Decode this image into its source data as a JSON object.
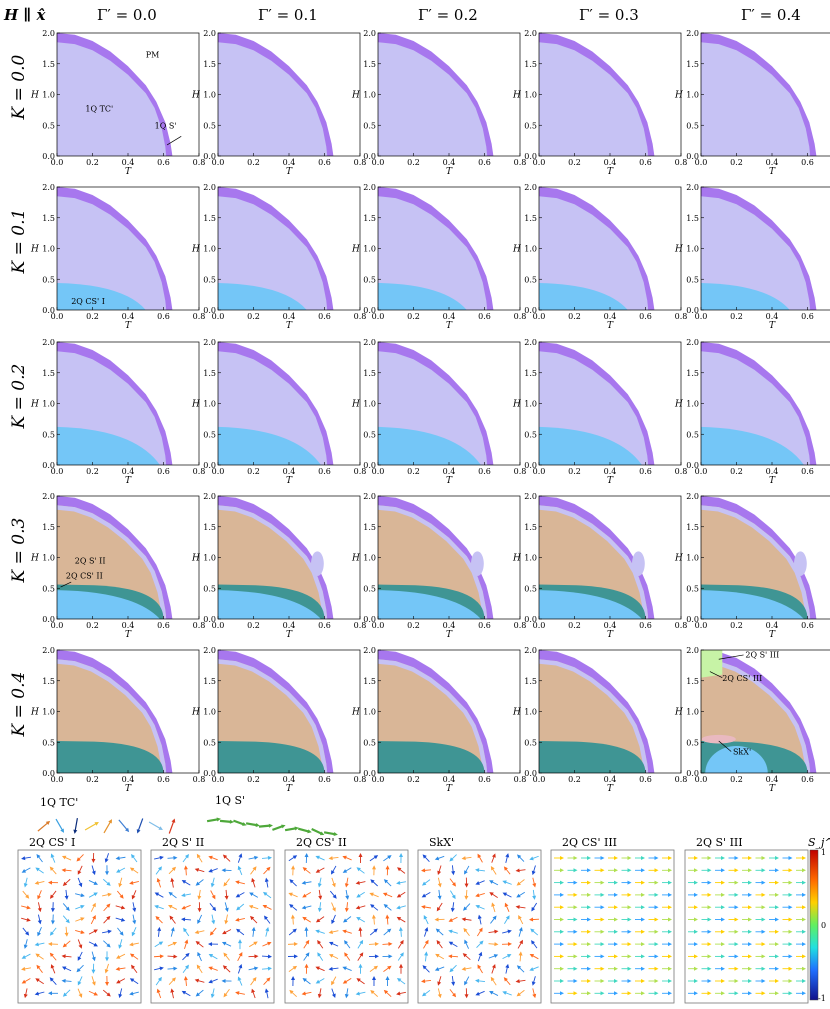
{
  "figure": {
    "corner_label": "H ∥ x̂",
    "column_titles": [
      "Γ′ = 0.0",
      "Γ′ = 0.1",
      "Γ′ = 0.2",
      "Γ′ = 0.3",
      "Γ′ = 0.4"
    ],
    "row_titles": [
      "K = 0.0",
      "K = 0.1",
      "K = 0.2",
      "K = 0.3",
      "K = 0.4"
    ],
    "x_axis_label": "T",
    "y_axis_label": "H",
    "x_ticks": [
      "0.0",
      "0.2",
      "0.4",
      "0.6",
      "0.8"
    ],
    "y_ticks": [
      "0.0",
      "0.5",
      "1.0",
      "1.5",
      "2.0"
    ],
    "annotations": {
      "pm": "PM",
      "tc": "1Q TC'",
      "s1q": "1Q S'",
      "cs1": "2Q CS' I",
      "s2": "2Q S' II",
      "cs2": "2Q CS' II",
      "s3": "2Q S' III",
      "cs3": "2Q CS' III",
      "skx": "SkX'"
    }
  },
  "phase_colors": {
    "tc": "#c6c2f4",
    "s1q": "#a777ee",
    "cs1": "#74c6f7",
    "s2": "#d9b697",
    "cs2": "#3f9594",
    "skx": "#74c6f7",
    "s3": "#c7f3a6",
    "cs3": "#c7f3a6"
  },
  "spin_structures_1q": {
    "tc_label": "1Q TC'",
    "s_label": "1Q S'"
  },
  "spin_structures_2q": {
    "labels": [
      "2Q CS' I",
      "2Q S' II",
      "2Q CS' II",
      "SkX'",
      "2Q CS' III",
      "2Q S' III"
    ]
  },
  "colorbar": {
    "title": "S_j^z",
    "ticks": [
      "1",
      "0",
      "-1"
    ]
  },
  "chart_data": {
    "type": "heatmap",
    "xlabel": "T",
    "ylabel": "H",
    "xlim": [
      0,
      0.8
    ],
    "ylim": [
      0,
      2.0
    ],
    "tc_boundary": [
      [
        0.0,
        1.85
      ],
      [
        0.1,
        1.82
      ],
      [
        0.2,
        1.72
      ],
      [
        0.3,
        1.55
      ],
      [
        0.4,
        1.32
      ],
      [
        0.5,
        1.02
      ],
      [
        0.55,
        0.78
      ],
      [
        0.59,
        0.45
      ],
      [
        0.61,
        0.15
      ],
      [
        0.615,
        0.0
      ]
    ],
    "pm_boundary": [
      [
        0.0,
        2.0
      ],
      [
        0.1,
        1.97
      ],
      [
        0.2,
        1.87
      ],
      [
        0.3,
        1.7
      ],
      [
        0.4,
        1.46
      ],
      [
        0.5,
        1.15
      ],
      [
        0.56,
        0.88
      ],
      [
        0.61,
        0.55
      ],
      [
        0.64,
        0.2
      ],
      [
        0.65,
        0.0
      ]
    ],
    "panels": [
      [
        {
          "cs1": null,
          "cs2": null,
          "s2": false,
          "blob": false,
          "skx": false,
          "s3": false
        },
        {
          "cs1": null,
          "cs2": null,
          "s2": false,
          "blob": false,
          "skx": false,
          "s3": false
        },
        {
          "cs1": null,
          "cs2": null,
          "s2": false,
          "blob": false,
          "skx": false,
          "s3": false
        },
        {
          "cs1": null,
          "cs2": null,
          "s2": false,
          "blob": false,
          "skx": false,
          "s3": false
        },
        {
          "cs1": null,
          "cs2": null,
          "s2": false,
          "blob": false,
          "skx": false,
          "s3": false
        }
      ],
      [
        {
          "cs1": [
            0.5,
            0.44
          ],
          "cs2": null,
          "s2": false,
          "blob": false,
          "skx": false,
          "s3": false
        },
        {
          "cs1": [
            0.5,
            0.44
          ],
          "cs2": null,
          "s2": false,
          "blob": false,
          "skx": false,
          "s3": false
        },
        {
          "cs1": [
            0.5,
            0.44
          ],
          "cs2": null,
          "s2": false,
          "blob": false,
          "skx": false,
          "s3": false
        },
        {
          "cs1": [
            0.5,
            0.44
          ],
          "cs2": null,
          "s2": false,
          "blob": false,
          "skx": false,
          "s3": false
        },
        {
          "cs1": [
            0.5,
            0.44
          ],
          "cs2": null,
          "s2": false,
          "blob": false,
          "skx": false,
          "s3": false
        }
      ],
      [
        {
          "cs1": [
            0.58,
            0.62
          ],
          "cs2": null,
          "s2": false,
          "blob": false,
          "skx": false,
          "s3": false
        },
        {
          "cs1": [
            0.58,
            0.62
          ],
          "cs2": null,
          "s2": false,
          "blob": false,
          "skx": false,
          "s3": false
        },
        {
          "cs1": [
            0.58,
            0.62
          ],
          "cs2": null,
          "s2": false,
          "blob": false,
          "skx": false,
          "s3": false
        },
        {
          "cs1": [
            0.58,
            0.62
          ],
          "cs2": null,
          "s2": false,
          "blob": false,
          "skx": false,
          "s3": false
        },
        {
          "cs1": [
            0.58,
            0.62
          ],
          "cs2": null,
          "s2": false,
          "blob": false,
          "skx": false,
          "s3": false
        }
      ],
      [
        {
          "cs1": [
            0.58,
            0.47
          ],
          "cs2": [
            0.6,
            0.56
          ],
          "s2": true,
          "blob": false,
          "skx": false,
          "s3": false
        },
        {
          "cs1": [
            0.58,
            0.47
          ],
          "cs2": [
            0.6,
            0.56
          ],
          "s2": true,
          "blob": true,
          "skx": false,
          "s3": false
        },
        {
          "cs1": [
            0.58,
            0.47
          ],
          "cs2": [
            0.6,
            0.56
          ],
          "s2": true,
          "blob": true,
          "skx": false,
          "s3": false
        },
        {
          "cs1": [
            0.58,
            0.47
          ],
          "cs2": [
            0.6,
            0.56
          ],
          "s2": true,
          "blob": true,
          "skx": false,
          "s3": false
        },
        {
          "cs1": [
            0.58,
            0.47
          ],
          "cs2": [
            0.6,
            0.56
          ],
          "s2": true,
          "blob": true,
          "skx": false,
          "s3": false
        }
      ],
      [
        {
          "cs1": null,
          "cs2": [
            0.6,
            0.52
          ],
          "s2": true,
          "blob": false,
          "skx": false,
          "s3": false
        },
        {
          "cs1": null,
          "cs2": [
            0.6,
            0.52
          ],
          "s2": true,
          "blob": false,
          "skx": false,
          "s3": false
        },
        {
          "cs1": null,
          "cs2": [
            0.6,
            0.52
          ],
          "s2": true,
          "blob": false,
          "skx": false,
          "s3": false
        },
        {
          "cs1": null,
          "cs2": [
            0.6,
            0.52
          ],
          "s2": true,
          "blob": false,
          "skx": false,
          "s3": false
        },
        {
          "cs1": null,
          "cs2": [
            0.6,
            0.52
          ],
          "s2": true,
          "blob": false,
          "skx": true,
          "s3": true
        }
      ]
    ]
  }
}
